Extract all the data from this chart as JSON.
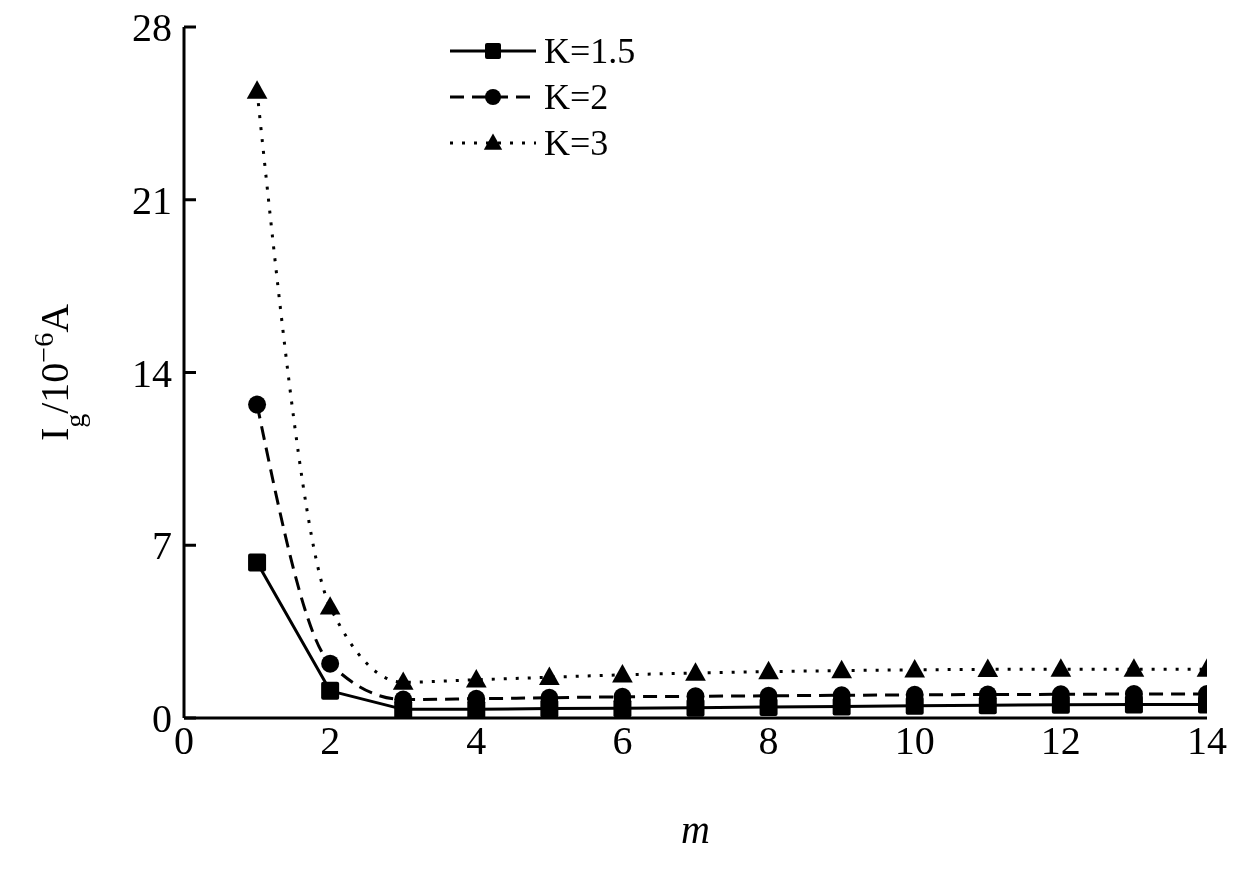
{
  "chart_data": {
    "type": "line",
    "xlabel": "m",
    "ylabel": "I$_{g}$/10$^{−6}$A",
    "x": [
      1,
      2,
      3,
      4,
      5,
      6,
      7,
      8,
      9,
      10,
      11,
      12,
      13,
      14
    ],
    "xlim": [
      0,
      14
    ],
    "xticks": [
      0,
      2,
      4,
      6,
      8,
      10,
      12,
      14
    ],
    "ylim": [
      0,
      28
    ],
    "yticks": [
      0,
      7,
      14,
      21,
      28
    ],
    "grid": false,
    "legend": "top",
    "series": [
      {
        "name": "K=1.5",
        "color": "#000000",
        "marker": "square",
        "line_style": "solid",
        "values": [
          6.3,
          1.1,
          0.35,
          0.35,
          0.38,
          0.4,
          0.42,
          0.45,
          0.47,
          0.5,
          0.52,
          0.54,
          0.55,
          0.55
        ]
      },
      {
        "name": "K=2",
        "color": "#000000",
        "marker": "circle",
        "line_style": "dashed",
        "values": [
          12.7,
          2.2,
          0.75,
          0.78,
          0.82,
          0.86,
          0.88,
          0.9,
          0.92,
          0.94,
          0.95,
          0.96,
          0.97,
          0.97
        ]
      },
      {
        "name": "K=3",
        "color": "#000000",
        "marker": "triangle",
        "line_style": "dotted",
        "values": [
          25.4,
          4.5,
          1.45,
          1.55,
          1.65,
          1.75,
          1.82,
          1.88,
          1.92,
          1.95,
          1.97,
          1.98,
          1.98,
          1.98
        ]
      }
    ]
  }
}
